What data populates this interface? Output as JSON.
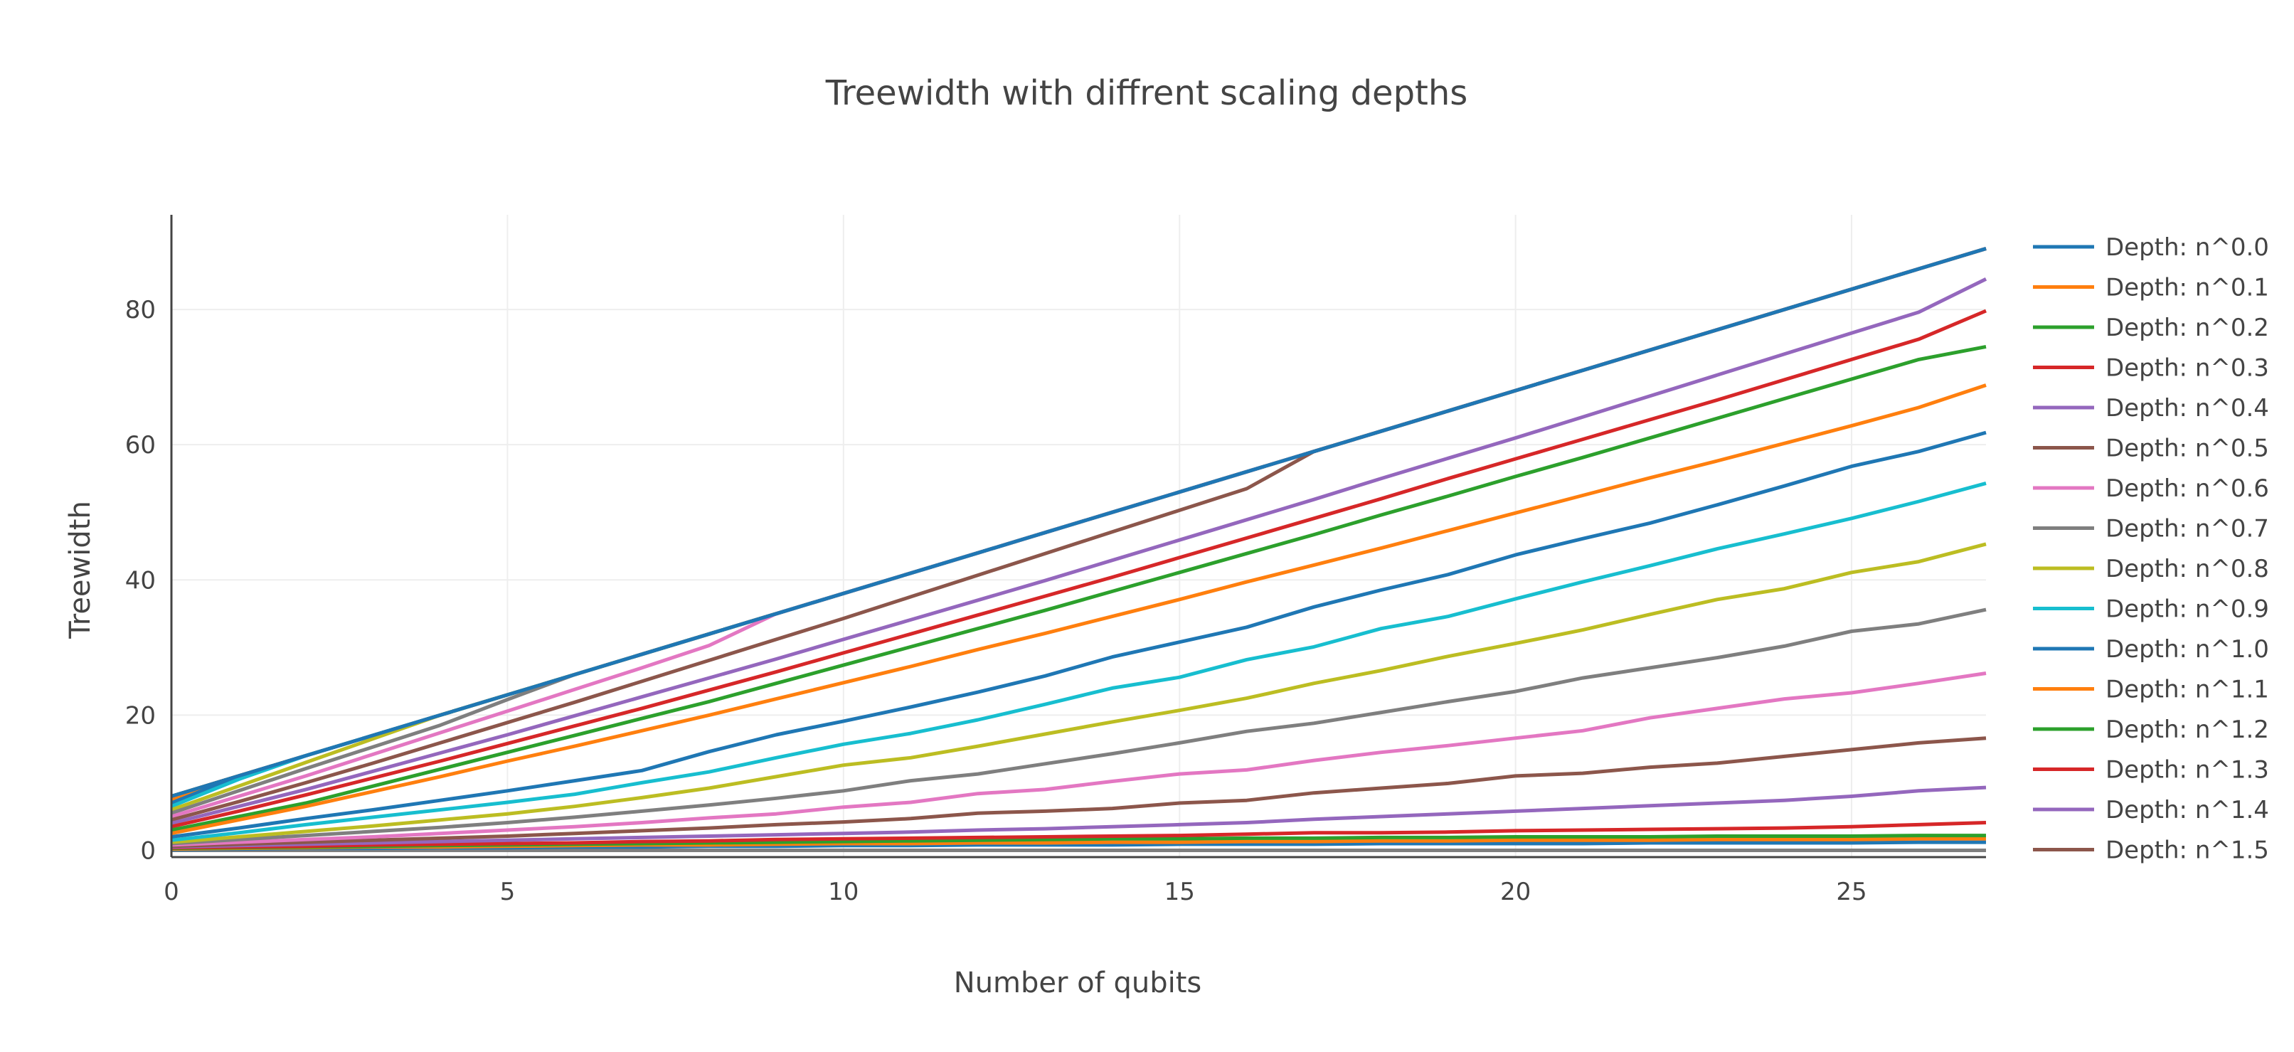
{
  "chart_data": {
    "type": "line",
    "title": "Treewidth with diffrent scaling depths",
    "xlabel": "Number of qubits",
    "ylabel": "Treewidth",
    "xlim": [
      0,
      27
    ],
    "ylim": [
      -1,
      94
    ],
    "xticks": [
      0,
      5,
      10,
      15,
      20,
      25
    ],
    "yticks": [
      0,
      20,
      40,
      60,
      80
    ],
    "grid": true,
    "legend_position": "right",
    "x": [
      0,
      1,
      2,
      3,
      4,
      5,
      6,
      7,
      8,
      9,
      10,
      11,
      12,
      13,
      14,
      15,
      16,
      17,
      18,
      19,
      20,
      21,
      22,
      23,
      24,
      25,
      26,
      27
    ],
    "series": [
      {
        "name": "Depth: n^0.0",
        "color": "#1f77b4",
        "values": [
          8,
          11,
          14,
          17,
          20,
          23,
          26,
          29,
          32,
          35,
          38,
          41,
          44,
          47,
          50,
          53,
          56,
          59,
          62,
          65,
          68,
          71,
          74,
          77,
          80,
          83,
          86,
          89
        ]
      },
      {
        "name": "Depth: n^0.1",
        "color": "#ff7f0e",
        "values": [
          2.5,
          4.5,
          6.5,
          8.7,
          10.9,
          13.2,
          15.4,
          17.7,
          20,
          22.4,
          24.8,
          27.2,
          29.7,
          32.1,
          34.6,
          37.1,
          39.7,
          42.2,
          44.7,
          47.3,
          49.9,
          52.5,
          55.1,
          57.6,
          60.2,
          62.8,
          65.5,
          68.8
        ]
      },
      {
        "name": "Depth: n^0.2",
        "color": "#2ca02c",
        "values": [
          3,
          5,
          7,
          9.5,
          12,
          14.5,
          17,
          19.5,
          22,
          24.7,
          27.4,
          30.1,
          32.8,
          35.5,
          38.3,
          41.1,
          43.9,
          46.7,
          49.6,
          52.4,
          55.3,
          58.1,
          61,
          63.9,
          66.8,
          69.7,
          72.6,
          74.5
        ]
      },
      {
        "name": "Depth: n^0.3",
        "color": "#d62728",
        "values": [
          3.5,
          5.8,
          8.2,
          10.7,
          13.2,
          15.8,
          18.4,
          21,
          23.7,
          26.4,
          29.2,
          32,
          34.8,
          37.6,
          40.4,
          43.3,
          46.2,
          49.1,
          52,
          55,
          57.9,
          60.8,
          63.7,
          66.6,
          69.6,
          72.6,
          75.6,
          79.8
        ]
      },
      {
        "name": "Depth: n^0.4",
        "color": "#9467bd",
        "values": [
          4,
          6.5,
          9,
          11.7,
          14.4,
          17.1,
          19.9,
          22.7,
          25.5,
          28.3,
          31.2,
          34.1,
          37,
          39.9,
          42.9,
          45.9,
          48.9,
          51.9,
          55,
          58,
          61,
          64.1,
          67.2,
          70.3,
          73.4,
          76.5,
          79.6,
          84.5
        ]
      },
      {
        "name": "Depth: n^0.5",
        "color": "#8c564b",
        "values": [
          4.5,
          7.2,
          10,
          12.9,
          15.9,
          18.9,
          21.9,
          25,
          28.1,
          31.2,
          34.3,
          37.5,
          40.7,
          43.9,
          47.1,
          50.3,
          53.5,
          59,
          62,
          65,
          68,
          71,
          74,
          77,
          80,
          83,
          86,
          89
        ]
      },
      {
        "name": "Depth: n^0.6",
        "color": "#e377c2",
        "values": [
          5,
          8,
          11,
          14.2,
          17.4,
          20.6,
          23.8,
          27,
          30.3,
          35,
          38,
          41,
          44,
          47,
          50,
          53,
          56,
          59,
          62,
          65,
          68,
          71,
          74,
          77,
          80,
          83,
          86,
          89
        ]
      },
      {
        "name": "Depth: n^0.7",
        "color": "#7f7f7f",
        "values": [
          5.5,
          8.8,
          12.1,
          15.3,
          18.5,
          22.3,
          26,
          29,
          32,
          35,
          38,
          41,
          44,
          47,
          50,
          53,
          56,
          59,
          62,
          65,
          68,
          71,
          74,
          77,
          80,
          83,
          86,
          89
        ]
      },
      {
        "name": "Depth: n^0.8",
        "color": "#bcbd22",
        "values": [
          6,
          9.5,
          13,
          16.5,
          20,
          23,
          26,
          29,
          32,
          35,
          38,
          41,
          44,
          47,
          50,
          53,
          56,
          59,
          62,
          65,
          68,
          71,
          74,
          77,
          80,
          83,
          86,
          89
        ]
      },
      {
        "name": "Depth: n^0.9",
        "color": "#17becf",
        "values": [
          6.5,
          10.5,
          14,
          17,
          20,
          23,
          26,
          29,
          32,
          35,
          38,
          41,
          44,
          47,
          50,
          53,
          56,
          59,
          62,
          65,
          68,
          71,
          74,
          77,
          80,
          83,
          86,
          89
        ]
      },
      {
        "name": "Depth: n^1.0",
        "color": "#1f77b4",
        "values": [
          7,
          11,
          14,
          17,
          20,
          23,
          26,
          29,
          32,
          35,
          38,
          41,
          44,
          47,
          50,
          53,
          56,
          59,
          62,
          65,
          68,
          71,
          74,
          77,
          80,
          83,
          86,
          89
        ]
      },
      {
        "name": "Depth: n^1.1",
        "color": "#ff7f0e",
        "values": [
          7.5,
          11,
          14,
          17,
          20,
          23,
          26,
          29,
          32,
          35,
          38,
          41,
          44,
          47,
          50,
          53,
          56,
          59,
          62,
          65,
          68,
          71,
          74,
          77,
          80,
          83,
          86,
          89
        ]
      },
      {
        "name": "Depth: n^1.2",
        "color": "#2ca02c",
        "values": [
          8,
          11,
          14,
          17,
          20,
          23,
          26,
          29,
          32,
          35,
          38,
          41,
          44,
          47,
          50,
          53,
          56,
          59,
          62,
          65,
          68,
          71,
          74,
          77,
          80,
          83,
          86,
          89
        ]
      },
      {
        "name": "Depth: n^1.3",
        "color": "#d62728",
        "values": [
          8,
          11,
          14,
          17,
          20,
          23,
          26,
          29,
          32,
          35,
          38,
          41,
          44,
          47,
          50,
          53,
          56,
          59,
          62,
          65,
          68,
          71,
          74,
          77,
          80,
          83,
          86,
          89
        ]
      },
      {
        "name": "Depth: n^1.4",
        "color": "#9467bd",
        "values": [
          8,
          11,
          14,
          17,
          20,
          23,
          26,
          29,
          32,
          35,
          38,
          41,
          44,
          47,
          50,
          53,
          56,
          59,
          62,
          65,
          68,
          71,
          74,
          77,
          80,
          83,
          86,
          89
        ]
      },
      {
        "name": "Depth: n^1.5",
        "color": "#8c564b",
        "values": [
          8,
          11,
          14,
          17,
          20,
          23,
          26,
          29,
          32,
          35,
          38,
          41,
          44,
          47,
          50,
          53,
          56,
          59,
          62,
          65,
          68,
          71,
          74,
          77,
          80,
          83,
          86,
          89
        ]
      }
    ],
    "additional_series_lower": [
      {
        "color": "#1f77b4",
        "values": [
          2,
          3.3,
          4.7,
          6,
          7.4,
          8.8,
          10.3,
          11.8,
          14.6,
          17.1,
          19.1,
          21.2,
          23.4,
          25.8,
          28.6,
          30.8,
          33,
          36,
          38.5,
          40.8,
          43.7,
          46.1,
          48.4,
          51.1,
          53.9,
          56.8,
          59,
          61.8
        ]
      },
      {
        "color": "#17becf",
        "values": [
          1.5,
          2.6,
          3.8,
          4.9,
          6,
          7.1,
          8.3,
          10,
          11.6,
          13.7,
          15.7,
          17.3,
          19.3,
          21.6,
          24,
          25.6,
          28.2,
          30.1,
          32.8,
          34.6,
          37.2,
          39.7,
          42.1,
          44.6,
          46.8,
          49.1,
          51.6,
          54.3
        ]
      },
      {
        "color": "#bcbd22",
        "values": [
          1.2,
          2,
          2.8,
          3.6,
          4.5,
          5.4,
          6.5,
          7.8,
          9.2,
          10.9,
          12.6,
          13.7,
          15.4,
          17.2,
          19,
          20.7,
          22.5,
          24.7,
          26.6,
          28.7,
          30.6,
          32.6,
          34.9,
          37.1,
          38.7,
          41.1,
          42.7,
          45.3
        ]
      },
      {
        "color": "#7f7f7f",
        "values": [
          1,
          1.6,
          2.2,
          2.8,
          3.4,
          4.1,
          4.9,
          5.8,
          6.7,
          7.7,
          8.8,
          10.3,
          11.3,
          12.8,
          14.3,
          15.9,
          17.6,
          18.8,
          20.4,
          22,
          23.5,
          25.5,
          27,
          28.5,
          30.2,
          32.4,
          33.5,
          35.6
        ]
      },
      {
        "color": "#e377c2",
        "values": [
          0.8,
          1.2,
          1.6,
          2,
          2.5,
          3,
          3.5,
          4.1,
          4.8,
          5.4,
          6.4,
          7.1,
          8.4,
          9,
          10.2,
          11.3,
          11.9,
          13.3,
          14.5,
          15.5,
          16.6,
          17.7,
          19.6,
          21,
          22.4,
          23.3,
          24.7,
          26.2
        ]
      },
      {
        "color": "#8c564b",
        "values": [
          0.6,
          0.9,
          1.2,
          1.5,
          1.8,
          2.1,
          2.5,
          2.9,
          3.3,
          3.8,
          4.2,
          4.7,
          5.5,
          5.8,
          6.2,
          7,
          7.4,
          8.5,
          9.2,
          9.9,
          11,
          11.4,
          12.3,
          12.9,
          13.9,
          14.9,
          15.9,
          16.6
        ]
      },
      {
        "color": "#9467bd",
        "values": [
          0.5,
          0.7,
          0.9,
          1.1,
          1.3,
          1.5,
          1.7,
          1.9,
          2.1,
          2.3,
          2.5,
          2.7,
          3,
          3.2,
          3.5,
          3.8,
          4.1,
          4.6,
          5,
          5.4,
          5.8,
          6.2,
          6.6,
          7,
          7.4,
          8,
          8.8,
          9.3
        ]
      },
      {
        "color": "#d62728",
        "values": [
          0.4,
          0.5,
          0.6,
          0.8,
          0.9,
          1,
          1.1,
          1.3,
          1.4,
          1.6,
          1.7,
          1.8,
          1.9,
          2,
          2.1,
          2.2,
          2.4,
          2.6,
          2.6,
          2.7,
          2.9,
          3,
          3.1,
          3.2,
          3.3,
          3.5,
          3.8,
          4.1
        ]
      },
      {
        "color": "#2ca02c",
        "values": [
          0.3,
          0.4,
          0.5,
          0.6,
          0.7,
          0.8,
          0.9,
          1,
          1.1,
          1.2,
          1.3,
          1.4,
          1.5,
          1.6,
          1.7,
          1.7,
          1.8,
          1.8,
          1.9,
          1.9,
          2,
          2,
          2,
          2.1,
          2.1,
          2.1,
          2.2,
          2.2
        ]
      },
      {
        "color": "#ff7f0e",
        "values": [
          0.2,
          0.3,
          0.4,
          0.5,
          0.5,
          0.6,
          0.7,
          0.8,
          0.8,
          0.9,
          1,
          1,
          1.1,
          1.1,
          1.2,
          1.2,
          1.3,
          1.3,
          1.4,
          1.4,
          1.5,
          1.5,
          1.5,
          1.6,
          1.6,
          1.6,
          1.7,
          1.7
        ]
      },
      {
        "color": "#1f77b4",
        "values": [
          0.1,
          0.2,
          0.3,
          0.3,
          0.4,
          0.4,
          0.5,
          0.5,
          0.6,
          0.6,
          0.7,
          0.7,
          0.8,
          0.8,
          0.8,
          0.9,
          0.9,
          0.9,
          1,
          1,
          1,
          1,
          1.1,
          1.1,
          1.1,
          1.1,
          1.2,
          1.2
        ]
      },
      {
        "color": "#7f7f7f",
        "values": [
          0,
          0,
          0,
          0,
          0,
          0,
          0,
          0,
          0,
          0,
          0,
          0,
          0,
          0,
          0,
          0,
          0,
          0,
          0,
          0,
          0,
          0,
          0,
          0,
          0,
          0,
          0,
          0
        ]
      }
    ],
    "additional_series_mid": [
      {
        "color": "#ff7f0e",
        "values": [
          2.5,
          4.5,
          6.5,
          8.7,
          10.9,
          13.2,
          15.4,
          17.7,
          20,
          22.4,
          24.8,
          27.2,
          29.7,
          32.1,
          34.6,
          37.1,
          39.7,
          42.2,
          44.7,
          47.3,
          49.9,
          52.5,
          55.1,
          57.6,
          60.2,
          62.8,
          65.5,
          68.8
        ]
      }
    ]
  }
}
